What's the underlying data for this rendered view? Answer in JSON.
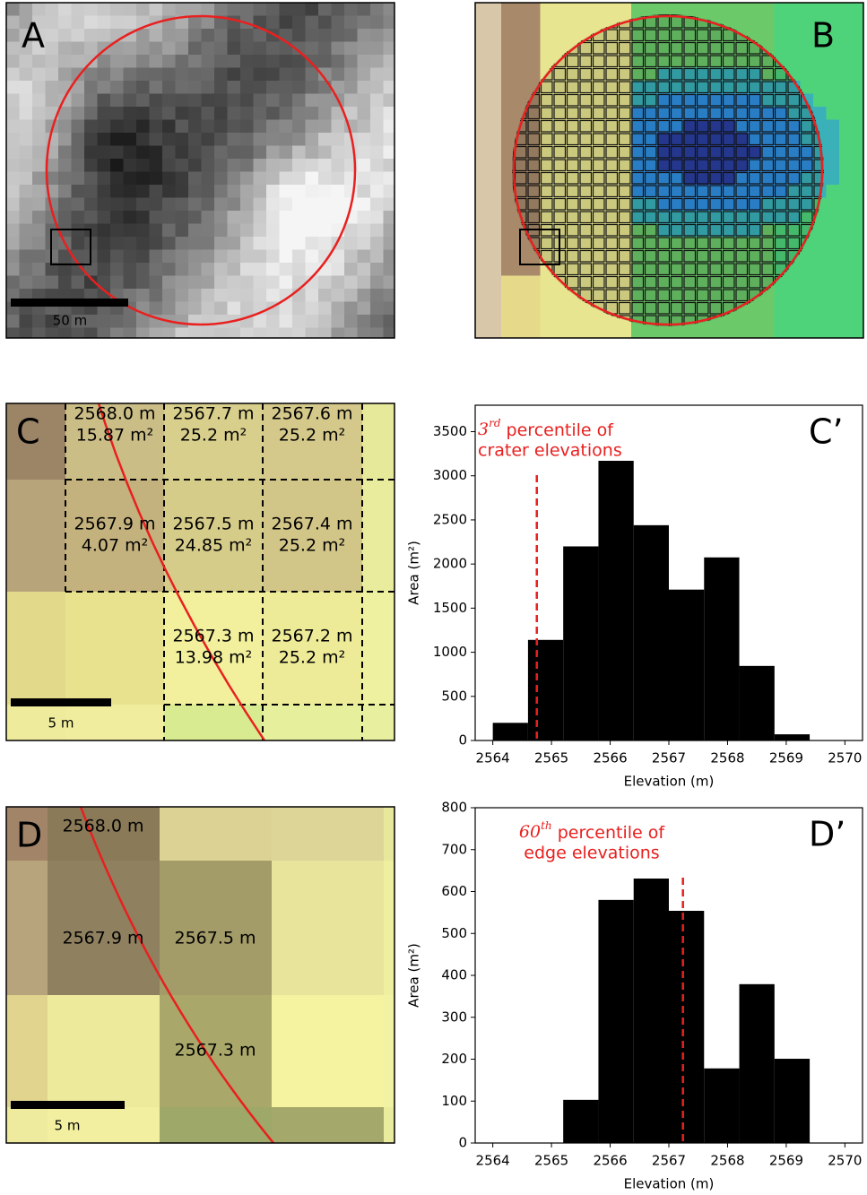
{
  "panels": [
    {
      "label": "A",
      "scale_bar": "50 m"
    },
    {
      "label": "B"
    },
    {
      "label": "C",
      "scale_bar": "5 m",
      "cells": [
        {
          "elevation": "2568.0 m",
          "area": "15.87 m²"
        },
        {
          "elevation": "2567.7 m",
          "area": "25.2 m²"
        },
        {
          "elevation": "2567.6 m",
          "area": "25.2 m²"
        },
        {
          "elevation": "2567.9 m",
          "area": "4.07 m²"
        },
        {
          "elevation": "2567.5 m",
          "area": "24.85 m²"
        },
        {
          "elevation": "2567.4 m",
          "area": "25.2 m²"
        },
        {
          "elevation": "2567.3 m",
          "area": "13.98 m²"
        },
        {
          "elevation": "2567.2 m",
          "area": "25.2 m²"
        }
      ]
    },
    {
      "label": "D",
      "scale_bar": "5 m",
      "cells": [
        {
          "elevation": "2568.0 m"
        },
        {
          "elevation": "2567.9 m"
        },
        {
          "elevation": "2567.5 m"
        },
        {
          "elevation": "2567.3 m"
        }
      ]
    }
  ],
  "chart_data": [
    {
      "type": "histogram",
      "label": "C’",
      "bins": [
        2564.0,
        2564.6,
        2565.2,
        2565.8,
        2566.4,
        2567.0,
        2567.6,
        2568.2,
        2568.8,
        2569.4
      ],
      "values": [
        200,
        1140,
        2200,
        3170,
        2440,
        1710,
        2075,
        845,
        70
      ],
      "color": "#000000",
      "xlim": [
        2563.7,
        2570.3
      ],
      "ylim": [
        0,
        3800
      ],
      "xticks": [
        2564,
        2565,
        2566,
        2567,
        2568,
        2569,
        2570
      ],
      "yticks": [
        0,
        500,
        1000,
        1500,
        2000,
        2500,
        3000,
        3500
      ],
      "xlabel": "Elevation (m)",
      "ylabel": "Area (m²)",
      "percentile": {
        "value": 2564.75,
        "number": "3",
        "suffix": "rd",
        "text": " percentile of",
        "text2": "crater elevations",
        "color": "#e8201f"
      }
    },
    {
      "type": "histogram",
      "label": "D’",
      "bins": [
        2565.2,
        2565.8,
        2566.4,
        2567.0,
        2567.6,
        2568.2,
        2568.8,
        2569.4
      ],
      "values": [
        103,
        580,
        631,
        554,
        178,
        379,
        201
      ],
      "color": "#000000",
      "xlim": [
        2563.7,
        2570.3
      ],
      "ylim": [
        0,
        800
      ],
      "xticks": [
        2564,
        2565,
        2566,
        2567,
        2568,
        2569,
        2570
      ],
      "yticks": [
        0,
        100,
        200,
        300,
        400,
        500,
        600,
        700,
        800
      ],
      "xlabel": "Elevation (m)",
      "ylabel": "Area (m²)",
      "percentile": {
        "value": 2567.24,
        "number": "60",
        "suffix": "th",
        "text": " percentile of",
        "text2": "edge elevations",
        "color": "#e8201f"
      }
    }
  ]
}
